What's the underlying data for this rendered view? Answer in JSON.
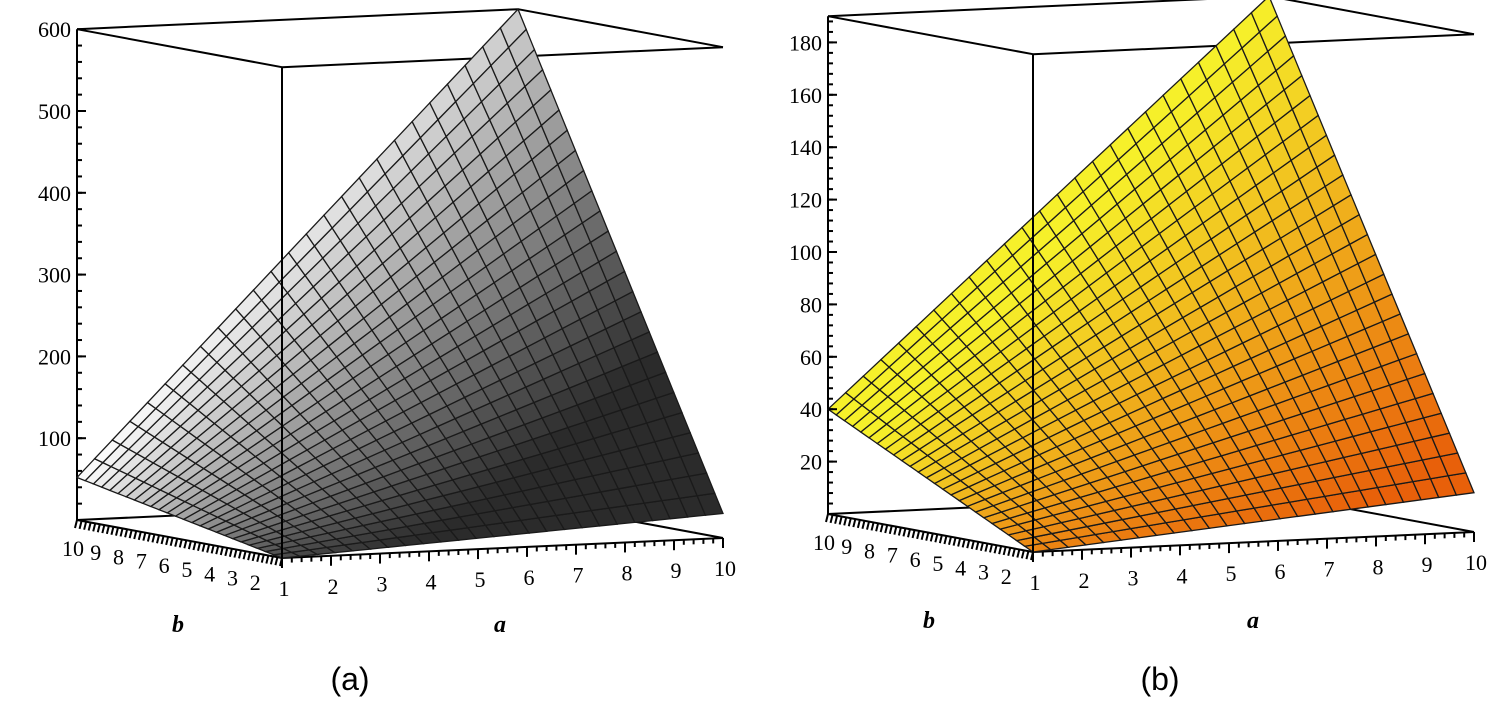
{
  "chart_data": [
    {
      "type": "surface3d",
      "panel_label": "(a)",
      "x_axis_label": "a",
      "y_axis_label": "b",
      "x_range": [
        1,
        10
      ],
      "y_range": [
        1,
        10
      ],
      "z_range": [
        0,
        600
      ],
      "x_ticks": [
        "1",
        "2",
        "3",
        "4",
        "5",
        "6",
        "7",
        "8",
        "9",
        "10"
      ],
      "y_ticks": [
        "10",
        "9",
        "8",
        "7",
        "6",
        "5",
        "4",
        "3",
        "2"
      ],
      "z_ticks": [
        "100",
        "200",
        "300",
        "400",
        "500",
        "600"
      ],
      "z_corners": {
        "a1_b1": 0,
        "a10_b1": 30,
        "a1_b10": 52,
        "a10_b10": 600
      },
      "mesh_divisions": 25,
      "color_scheme": "grayscale",
      "colors": {
        "low": "#2b2b2b",
        "high": "#fafafa"
      }
    },
    {
      "type": "surface3d",
      "panel_label": "(b)",
      "x_axis_label": "a",
      "y_axis_label": "b",
      "x_range": [
        1,
        10
      ],
      "y_range": [
        1,
        10
      ],
      "z_range": [
        0,
        190
      ],
      "x_ticks": [
        "1",
        "2",
        "3",
        "4",
        "5",
        "6",
        "7",
        "8",
        "9",
        "10"
      ],
      "y_ticks": [
        "10",
        "9",
        "8",
        "7",
        "6",
        "5",
        "4",
        "3",
        "2"
      ],
      "z_ticks": [
        "20",
        "40",
        "60",
        "80",
        "100",
        "120",
        "140",
        "160",
        "180"
      ],
      "z_corners": {
        "a1_b1": 0,
        "a10_b1": 15,
        "a1_b10": 40,
        "a10_b10": 190
      },
      "mesh_divisions": 25,
      "color_scheme": "yellow-orange",
      "colors": {
        "low": "#e8600a",
        "high": "#f6f02a"
      }
    }
  ]
}
